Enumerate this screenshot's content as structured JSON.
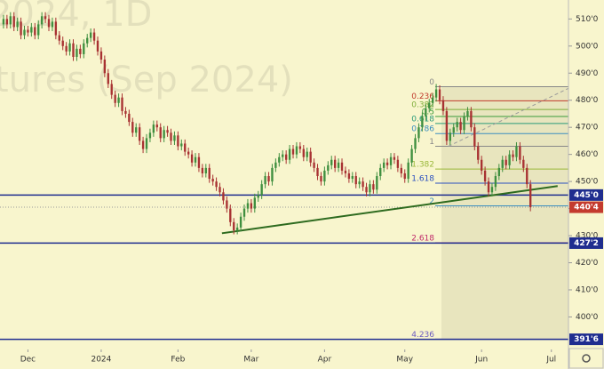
{
  "chart_data": {
    "type": "candlestick",
    "watermark": [
      "2024, 1D",
      "tures (Sep 2024)"
    ],
    "xlim": [
      -1,
      161.9
    ],
    "ylim": [
      388,
      517
    ],
    "xticks": [
      {
        "value": 7,
        "label": "Dec"
      },
      {
        "value": 28,
        "label": "2024"
      },
      {
        "value": 50,
        "label": "Feb"
      },
      {
        "value": 71,
        "label": "Mar"
      },
      {
        "value": 92,
        "label": "Apr"
      },
      {
        "value": 115,
        "label": "May"
      },
      {
        "value": 137,
        "label": "Jun"
      },
      {
        "value": 157,
        "label": "Jul"
      }
    ],
    "yticks": [
      {
        "value": 400,
        "label": "400'0"
      },
      {
        "value": 410,
        "label": "410'0"
      },
      {
        "value": 420,
        "label": "420'0"
      },
      {
        "value": 430,
        "label": "430'0"
      },
      {
        "value": 440,
        "label": "440'0"
      },
      {
        "value": 450,
        "label": "450'0"
      },
      {
        "value": 460,
        "label": "460'0"
      },
      {
        "value": 470,
        "label": "470'0"
      },
      {
        "value": 480,
        "label": "480'0"
      },
      {
        "value": 490,
        "label": "490'0"
      },
      {
        "value": 500,
        "label": "500'0"
      },
      {
        "value": 510,
        "label": "510'0"
      }
    ],
    "up_color": "#3f8f3f",
    "down_color": "#a83232",
    "ohlc": {
      "open": [
        508,
        510,
        508,
        511,
        507,
        509,
        504,
        506,
        505,
        507,
        504,
        508,
        511,
        510,
        507,
        509,
        504,
        502,
        500,
        498,
        501,
        496,
        499,
        497,
        501,
        503,
        505,
        502,
        498,
        495,
        490,
        486,
        482,
        479,
        481,
        476,
        475,
        472,
        468,
        470,
        465,
        462,
        466,
        468,
        471,
        470,
        466,
        469,
        468,
        465,
        467,
        463,
        464,
        461,
        460,
        457,
        459,
        455,
        453,
        455,
        451,
        450,
        448,
        446,
        443,
        440,
        435,
        432,
        433,
        437,
        440,
        442,
        440,
        444,
        445,
        449,
        452,
        450,
        455,
        457,
        459,
        460,
        458,
        462,
        460,
        463,
        462,
        459,
        461,
        457,
        455,
        452,
        450,
        454,
        456,
        458,
        455,
        457,
        454,
        453,
        451,
        452,
        449,
        450,
        448,
        446,
        449,
        447,
        452,
        455,
        457,
        456,
        459,
        458,
        455,
        453,
        451,
        457,
        462,
        466,
        470,
        474,
        477,
        479,
        481,
        484,
        480,
        476,
        465,
        468,
        470,
        472,
        469,
        474,
        476,
        470,
        463,
        458,
        454,
        450,
        446,
        448,
        452,
        455,
        458,
        456,
        460,
        459,
        463,
        458,
        455,
        449
      ],
      "high": [
        511.5,
        511.5,
        512.5,
        512.5,
        510.5,
        510.5,
        507.5,
        507.5,
        508.5,
        508.5,
        509.5,
        512.5,
        512.5,
        511.5,
        510.5,
        510.5,
        505.5,
        503.5,
        501.5,
        502.5,
        502.5,
        500.5,
        500.5,
        502.5,
        504.5,
        506.5,
        506.5,
        503.5,
        499.5,
        496.5,
        491.5,
        487.5,
        483.5,
        482.5,
        482.5,
        477.5,
        476.5,
        473.5,
        471.5,
        471.5,
        466.5,
        467.5,
        469.5,
        472.5,
        472.5,
        471.5,
        470.5,
        470.5,
        469.5,
        468.5,
        468.5,
        465.5,
        465.5,
        462.5,
        461.5,
        460.5,
        460.5,
        456.5,
        456.5,
        456.5,
        452.5,
        451.5,
        449.5,
        447.5,
        444.5,
        441.5,
        436.5,
        434.5,
        438.5,
        441.5,
        443.5,
        443.5,
        445.5,
        446.5,
        450.5,
        453.5,
        453.5,
        456.5,
        458.5,
        460.5,
        461.5,
        461.5,
        463.5,
        463.5,
        464.5,
        464.5,
        463.5,
        462.5,
        462.5,
        458.5,
        456.5,
        453.5,
        455.5,
        457.5,
        459.5,
        459.5,
        458.5,
        458.5,
        455.5,
        454.5,
        453.5,
        453.5,
        451.5,
        451.5,
        449.5,
        450.5,
        450.5,
        453.5,
        456.5,
        458.5,
        458.5,
        460.5,
        460.5,
        459.5,
        456.5,
        454.5,
        458.5,
        463.5,
        467.5,
        471.5,
        475.5,
        478.5,
        480.5,
        482.5,
        486,
        485.5,
        481.5,
        477.5,
        469.5,
        471.5,
        473.5,
        473.5,
        475.5,
        477.5,
        477.5,
        471.5,
        464.5,
        459.5,
        455.5,
        451.5,
        449.5,
        453.5,
        456.5,
        459.5,
        459.5,
        461.5,
        461.5,
        464.5,
        464.5,
        459.5,
        456.5,
        450.5
      ],
      "low": [
        506.5,
        506.5,
        506.5,
        505.5,
        505.5,
        502.5,
        502.5,
        503.5,
        503.5,
        502.5,
        502.5,
        506.5,
        508.5,
        505.5,
        505.5,
        502.5,
        500.5,
        498.5,
        496.5,
        496.5,
        494.5,
        494.5,
        495.5,
        495.5,
        499.5,
        501.5,
        500.5,
        496.5,
        493.5,
        488.5,
        484.5,
        480.5,
        477.5,
        477.5,
        474.5,
        473.5,
        470.5,
        466.5,
        466.5,
        463.5,
        460.5,
        460.5,
        464.5,
        466.5,
        468.5,
        464.5,
        464.5,
        466.5,
        463.5,
        463.5,
        461.5,
        461.5,
        459.5,
        458.5,
        455.5,
        455.5,
        453.5,
        451.5,
        451.5,
        449.5,
        448.5,
        446.5,
        444.5,
        441.5,
        438.5,
        433.5,
        430.5,
        430.5,
        431.5,
        435.5,
        438.5,
        438.5,
        438.5,
        442.5,
        443.5,
        447.5,
        448.5,
        448.5,
        453.5,
        455.5,
        457.5,
        456.5,
        456.5,
        458.5,
        458.5,
        460.5,
        457.5,
        457.5,
        455.5,
        453.5,
        450.5,
        448.5,
        448.5,
        452.5,
        454.5,
        453.5,
        453.5,
        452.5,
        451.5,
        449.5,
        449.5,
        447.5,
        447.5,
        446.5,
        444.5,
        444.5,
        445.5,
        445.5,
        450.5,
        453.5,
        454.5,
        454.5,
        456.5,
        453.5,
        451.5,
        449.5,
        449.5,
        455.5,
        460.5,
        464.5,
        468.5,
        472.5,
        475.5,
        477.5,
        479.5,
        478.5,
        474.5,
        463.5,
        463.5,
        466.5,
        468.5,
        467.5,
        467.5,
        472.5,
        468.5,
        461.5,
        456.5,
        452.5,
        448.5,
        444.5,
        444.5,
        446.5,
        450.5,
        453.5,
        454.5,
        454.5,
        457.5,
        457.5,
        456.5,
        453.5,
        447.5,
        439
      ],
      "close": [
        510,
        508,
        511,
        507,
        509,
        504,
        506,
        505,
        507,
        504,
        508,
        511,
        510,
        507,
        509,
        504,
        502,
        500,
        498,
        501,
        496,
        499,
        497,
        501,
        503,
        505,
        502,
        498,
        495,
        490,
        486,
        482,
        479,
        481,
        476,
        475,
        472,
        468,
        470,
        465,
        462,
        466,
        468,
        471,
        470,
        466,
        469,
        468,
        465,
        467,
        463,
        464,
        461,
        460,
        457,
        459,
        455,
        453,
        455,
        451,
        450,
        448,
        446,
        443,
        440,
        435,
        432,
        433,
        437,
        440,
        442,
        440,
        444,
        445,
        449,
        452,
        450,
        455,
        457,
        459,
        460,
        458,
        462,
        460,
        463,
        462,
        459,
        461,
        457,
        455,
        452,
        450,
        454,
        456,
        458,
        455,
        457,
        454,
        453,
        451,
        452,
        449,
        450,
        448,
        446,
        449,
        447,
        452,
        455,
        457,
        456,
        459,
        458,
        455,
        453,
        451,
        457,
        462,
        466,
        470,
        474,
        477,
        479,
        481,
        484,
        480,
        476,
        465,
        468,
        470,
        472,
        469,
        474,
        476,
        470,
        463,
        458,
        454,
        450,
        446,
        448,
        452,
        455,
        458,
        456,
        460,
        459,
        463,
        458,
        455,
        449,
        440.5
      ]
    },
    "price_lines": [
      {
        "value": 445,
        "label": "445'0",
        "color": "#1f2d8f"
      },
      {
        "value": 427.25,
        "label": "427'2",
        "color": "#1f2d8f"
      },
      {
        "value": 391.75,
        "label": "391'6",
        "color": "#1f2d8f"
      }
    ],
    "last_price": {
      "value": 440.5,
      "label": "440'4",
      "color": "#c43b2e"
    },
    "fib_levels": [
      {
        "ratio": 0,
        "price": 485,
        "color": "#888888"
      },
      {
        "ratio": 0.236,
        "price": 479.8,
        "color": "#c0392b"
      },
      {
        "ratio": 0.382,
        "price": 476.6,
        "color": "#7fae3a"
      },
      {
        "ratio": 0.5,
        "price": 474,
        "color": "#3a9a3a"
      },
      {
        "ratio": 0.618,
        "price": 471.4,
        "color": "#2a9a7a"
      },
      {
        "ratio": 0.786,
        "price": 467.7,
        "color": "#3a8ec0"
      },
      {
        "ratio": 1,
        "price": 463,
        "color": "#888888"
      },
      {
        "ratio": 1.382,
        "price": 454.6,
        "color": "#9ab83a"
      },
      {
        "ratio": 1.618,
        "price": 449.4,
        "color": "#2a4fc0"
      },
      {
        "ratio": 2,
        "price": 441,
        "color": "#3a8ec0"
      },
      {
        "ratio": 2.618,
        "price": 427.4,
        "color": "#c02a6a"
      },
      {
        "ratio": 4.236,
        "price": 391.8,
        "color": "#6a5ac0"
      }
    ],
    "trendlines": [
      {
        "x": [
          62.6,
          158.8
        ],
        "y": [
          430.9,
          448.3
        ],
        "color": "#2e6b1f"
      },
      {
        "x": [
          127.5,
          161.9
        ],
        "y": [
          463,
          484.4
        ],
        "color": "#9a9a9a"
      }
    ]
  }
}
